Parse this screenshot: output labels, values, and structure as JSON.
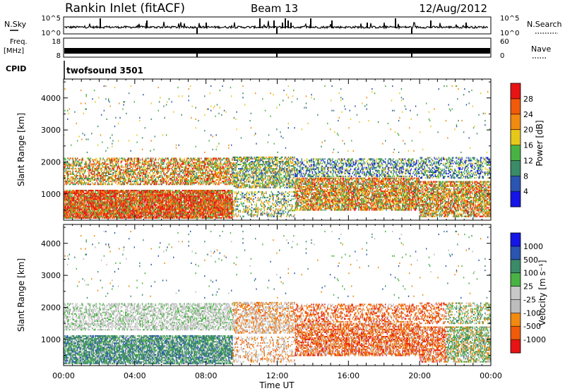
{
  "header": {
    "title": "Rankin Inlet (fitACF)",
    "beam": "Beam 13",
    "date": "12/Aug/2012"
  },
  "status_panel": {
    "nsky_label": "N.Sky",
    "nsearch_label": "N.Search",
    "ylim_top": "10^5",
    "ylim_bottom": "10^0",
    "freq_label_line1": "Freq.",
    "freq_label_line2": "[MHz]",
    "freq_tick_top": "18",
    "freq_tick_bottom": "8",
    "nave_label": "Nave",
    "nave_tick_top": "60",
    "nave_tick_bottom": "0",
    "cpid_label": "CPID",
    "cpid_value": "twofsound 3501"
  },
  "colors": {
    "power_scale": [
      "#1515e6",
      "#2a55b0",
      "#3b8a68",
      "#49b244",
      "#e6c81a",
      "#f08a10",
      "#f05a0a",
      "#e61414"
    ],
    "velocity_scale": [
      "#e61414",
      "#f05a0a",
      "#f08a10",
      "#bdbdbd",
      "#c8c8c8",
      "#49b244",
      "#3b8a68",
      "#2a55b0",
      "#1515e6"
    ]
  },
  "chart_data": [
    {
      "type": "heatmap",
      "name": "power",
      "xlabel": "",
      "ylabel": "Slant Range [km]",
      "x_ticks": [
        "00:00",
        "04:00",
        "08:00",
        "12:00",
        "16:00",
        "20:00",
        "00:00"
      ],
      "x_range_hours": [
        0,
        24
      ],
      "y_ticks": [
        1000,
        2000,
        3000,
        4000
      ],
      "ylim": [
        180,
        4590
      ],
      "colorbar": {
        "label": "Power [dB]",
        "ticks": [
          "4",
          "8",
          "12",
          "16",
          "20",
          "24",
          "28"
        ],
        "range": [
          0,
          32
        ]
      }
    },
    {
      "type": "heatmap",
      "name": "velocity",
      "xlabel": "Time UT",
      "ylabel": "Slant Range [km]",
      "x_ticks": [
        "00:00",
        "04:00",
        "08:00",
        "12:00",
        "16:00",
        "20:00",
        "00:00"
      ],
      "x_range_hours": [
        0,
        24
      ],
      "y_ticks": [
        1000,
        2000,
        3000,
        4000
      ],
      "ylim": [
        180,
        4590
      ],
      "colorbar": {
        "label": "Velocity [m s⁻¹]",
        "ticks": [
          "-1000",
          "-500",
          "-100",
          "-25",
          "25",
          "100",
          "500",
          "1000"
        ]
      }
    }
  ]
}
